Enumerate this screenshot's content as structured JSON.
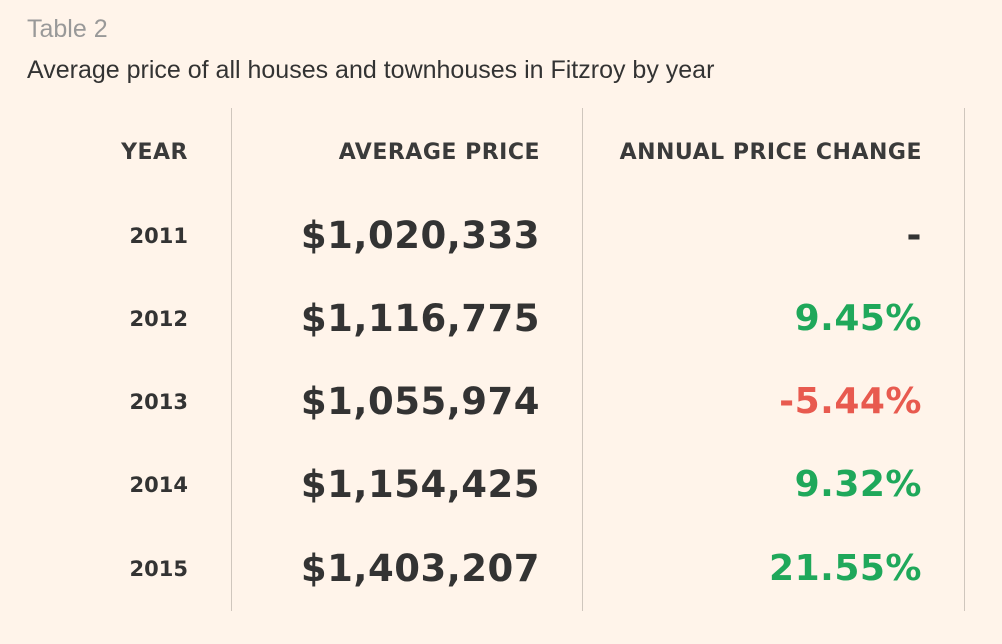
{
  "caption": {
    "label": "Table 2",
    "title": "Average price of all houses and townhouses in Fitzroy by year"
  },
  "colors": {
    "background": "#fff4ea",
    "text": "#333333",
    "positive": "#1fa85a",
    "negative": "#e85a4f",
    "neutral": "#333333",
    "divider": "#cfc6bd"
  },
  "table": {
    "headers": {
      "year": "YEAR",
      "price": "AVERAGE PRICE",
      "change": "ANNUAL PRICE CHANGE"
    },
    "rows": [
      {
        "year": "2011",
        "price": "$1,020,333",
        "change": "-",
        "trend": "neutral"
      },
      {
        "year": "2012",
        "price": "$1,116,775",
        "change": "9.45%",
        "trend": "positive"
      },
      {
        "year": "2013",
        "price": "$1,055,974",
        "change": "-5.44%",
        "trend": "negative"
      },
      {
        "year": "2014",
        "price": "$1,154,425",
        "change": "9.32%",
        "trend": "positive"
      },
      {
        "year": "2015",
        "price": "$1,403,207",
        "change": "21.55%",
        "trend": "positive"
      }
    ]
  }
}
